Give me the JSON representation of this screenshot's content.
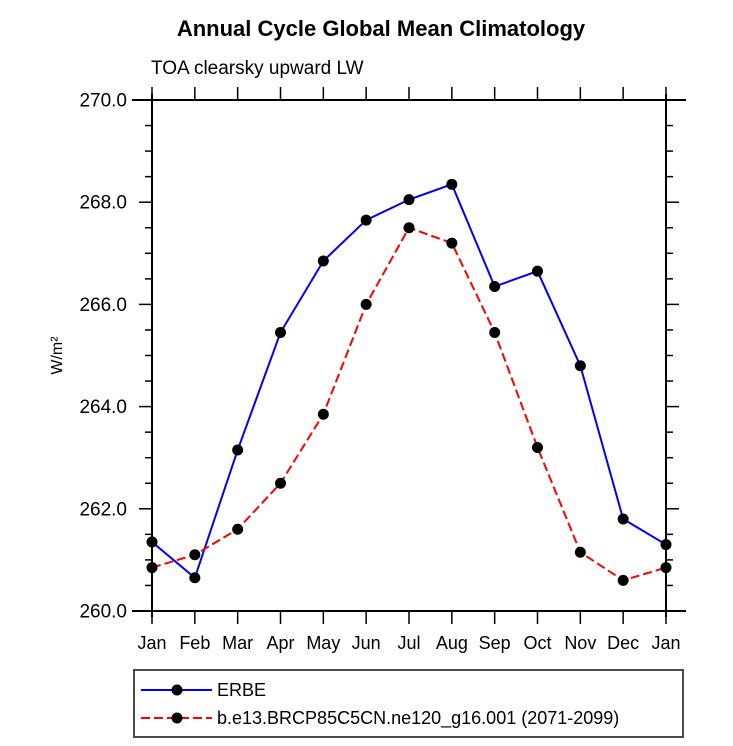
{
  "chart_data": {
    "type": "line",
    "title": "Annual Cycle Global Mean Climatology",
    "subtitle": "TOA clearsky upward LW",
    "ylabel": "W/m²",
    "xlabel": "",
    "categories": [
      "Jan",
      "Feb",
      "Mar",
      "Apr",
      "May",
      "Jun",
      "Jul",
      "Aug",
      "Sep",
      "Oct",
      "Nov",
      "Dec",
      "Jan"
    ],
    "ylim": [
      260.0,
      270.0
    ],
    "ytick_values": [
      260,
      262,
      264,
      266,
      268,
      270
    ],
    "ytick_labels": [
      "260.0",
      "262.0",
      "264.0",
      "266.0",
      "268.0",
      "270.0"
    ],
    "yminor_interval": 0.5,
    "grid": false,
    "legend_position": "bottom-left",
    "axis_color": "#000000",
    "series": [
      {
        "name": "ERBE",
        "color": "#0000ff",
        "line_style": "solid",
        "marker": "filled-circle",
        "marker_color": "#000000",
        "values": [
          261.35,
          260.65,
          263.15,
          265.45,
          266.85,
          267.65,
          268.05,
          268.35,
          266.35,
          266.65,
          264.8,
          261.8,
          261.3
        ]
      },
      {
        "name": "b.e13.BRCP85C5CN.ne120_g16.001 (2071-2099)",
        "color": "#ff0000",
        "line_style": "dashed",
        "marker": "filled-circle",
        "marker_color": "#000000",
        "values": [
          260.85,
          261.1,
          261.6,
          262.5,
          263.85,
          266.0,
          267.5,
          267.2,
          265.45,
          263.2,
          261.15,
          260.6,
          260.85
        ]
      }
    ]
  }
}
